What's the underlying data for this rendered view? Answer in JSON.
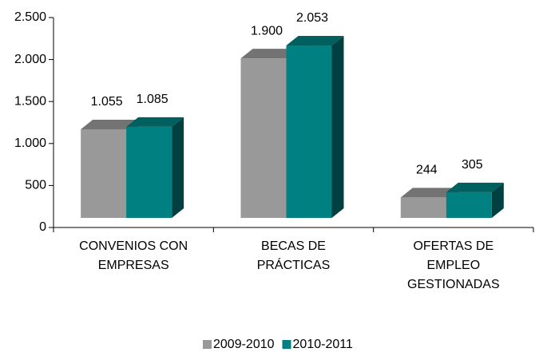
{
  "chart_data": {
    "type": "bar3d",
    "categories": [
      "CONVENIOS CON\nEMPRESAS",
      "BECAS DE\nPRÁCTICAS",
      "OFERTAS DE\nEMPLEO\nGESTIONADAS"
    ],
    "series": [
      {
        "name": "2009-2010",
        "color": "#999999",
        "values": [
          1055,
          1900,
          244
        ],
        "value_labels": [
          "1.055",
          "1.900",
          "244"
        ]
      },
      {
        "name": "2010-2011",
        "color": "#008080",
        "values": [
          1085,
          2053,
          305
        ],
        "value_labels": [
          "1.085",
          "2.053",
          "305"
        ]
      }
    ],
    "ylim": [
      0,
      2500
    ],
    "yticks": [
      0,
      500,
      {
        "value": 1000,
        "label": "1.000"
      },
      {
        "value": 1500,
        "label": "1.500"
      },
      {
        "value": 2000,
        "label": "2.000"
      },
      {
        "value": 2500,
        "label": "2.500"
      }
    ],
    "legend": "bottom"
  }
}
